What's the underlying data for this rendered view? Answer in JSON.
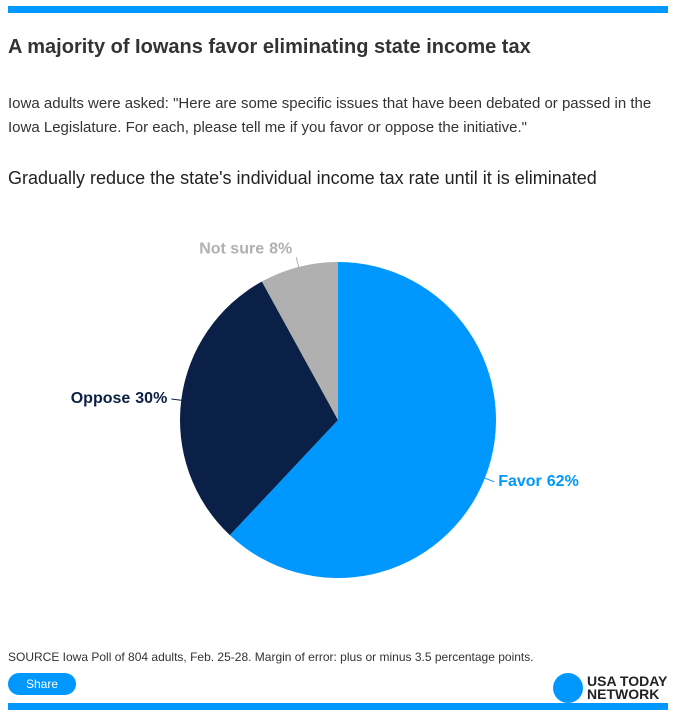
{
  "chart_data": {
    "type": "pie",
    "title": "A majority of Iowans favor eliminating state income tax",
    "subtitle": "Iowa adults were asked: \"Here are some specific issues that have been debated or passed in the Iowa Legislature. For each, please tell me if you favor or oppose the initiative.\"",
    "question": "Gradually reduce the state's individual income tax rate until it is eliminated",
    "categories": [
      "Favor",
      "Oppose",
      "Not sure"
    ],
    "values": [
      62,
      30,
      8
    ],
    "value_labels": [
      "62%",
      "30%",
      "8%"
    ],
    "colors": [
      "#0098fe",
      "#0b2046",
      "#b0b0b0"
    ],
    "source": "SOURCE Iowa Poll of 804 adults, Feb. 25-28. Margin of error: plus or minus 3.5 percentage points."
  },
  "footer": {
    "share": "Share",
    "logo_top": "USA TODAY",
    "logo_bottom": "NETWORK"
  }
}
